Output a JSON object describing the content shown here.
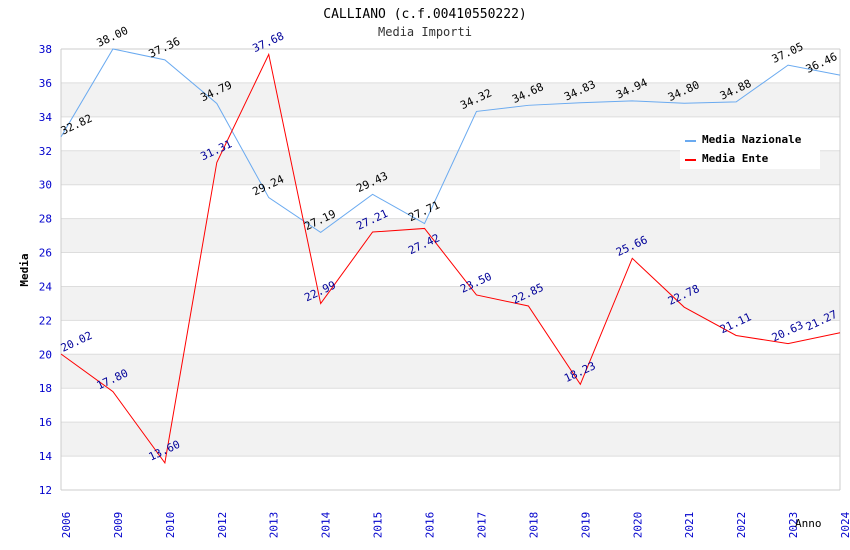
{
  "chart_data": {
    "type": "line",
    "title": "CALLIANO (c.f.00410550222)",
    "subtitle": "Media Importi",
    "xlabel": "Anno",
    "ylabel": "Media",
    "ylim": [
      12,
      38
    ],
    "yticks": [
      12,
      14,
      16,
      18,
      20,
      22,
      24,
      26,
      28,
      30,
      32,
      34,
      36,
      38
    ],
    "categories": [
      "2006",
      "2009",
      "2010",
      "2012",
      "2013",
      "2014",
      "2015",
      "2016",
      "2017",
      "2018",
      "2019",
      "2020",
      "2021",
      "2022",
      "2023",
      "2024"
    ],
    "series": [
      {
        "name": "Media Nazionale",
        "color": "#6aaaf0",
        "label_color": "#000000",
        "values": [
          32.82,
          38.0,
          37.36,
          34.79,
          29.24,
          27.19,
          29.43,
          27.71,
          34.32,
          34.68,
          34.83,
          34.94,
          34.8,
          34.88,
          37.05,
          36.46
        ]
      },
      {
        "name": "Media Ente",
        "color": "#ff0000",
        "label_color": "#000099",
        "values": [
          20.02,
          17.8,
          13.6,
          31.31,
          37.68,
          22.99,
          27.21,
          27.42,
          23.5,
          22.85,
          18.23,
          25.66,
          22.78,
          21.11,
          20.63,
          21.27
        ]
      }
    ],
    "grid": true,
    "legend_position": "top-right"
  }
}
